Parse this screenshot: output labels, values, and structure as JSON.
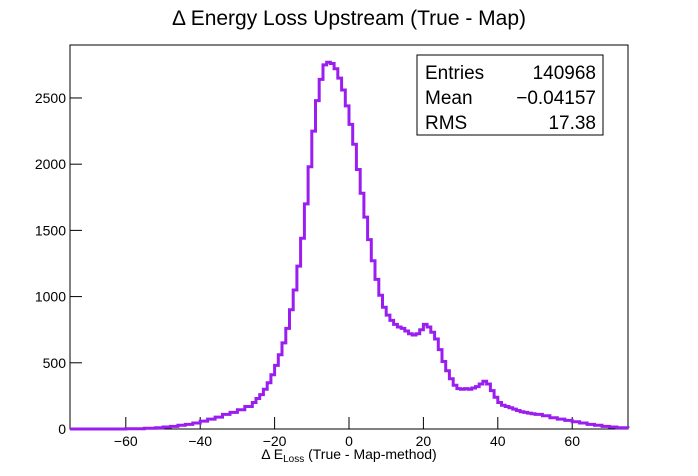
{
  "chart_data": {
    "type": "histogram",
    "title": "Δ Energy Loss Upstream (True - Map)",
    "xlabel_prefix": "Δ E",
    "xlabel_sub": "Loss",
    "xlabel_suffix": " (True - Map-method)",
    "ylabel": "",
    "xlim": [
      -75,
      75
    ],
    "ylim": [
      0,
      2900
    ],
    "x_ticks": [
      -60,
      -40,
      -20,
      0,
      20,
      40,
      60
    ],
    "y_ticks": [
      0,
      500,
      1000,
      1500,
      2000,
      2500
    ],
    "line_color": "#9a1ef0",
    "grid": false,
    "stats": {
      "entries_label": "Entries",
      "entries_value": "140968",
      "mean_label": "Mean",
      "mean_value": "−0.04157",
      "rms_label": "RMS",
      "rms_value": "17.38"
    },
    "points": [
      [
        -75,
        0
      ],
      [
        -70,
        0
      ],
      [
        -65,
        0
      ],
      [
        -60,
        2
      ],
      [
        -55,
        5
      ],
      [
        -52,
        10
      ],
      [
        -50,
        15
      ],
      [
        -48,
        20
      ],
      [
        -46,
        28
      ],
      [
        -44,
        35
      ],
      [
        -42,
        45
      ],
      [
        -40,
        60
      ],
      [
        -38,
        75
      ],
      [
        -36,
        90
      ],
      [
        -34,
        110
      ],
      [
        -32,
        125
      ],
      [
        -30,
        145
      ],
      [
        -28,
        170
      ],
      [
        -26,
        200
      ],
      [
        -25,
        230
      ],
      [
        -24,
        260
      ],
      [
        -23,
        300
      ],
      [
        -22,
        350
      ],
      [
        -21,
        410
      ],
      [
        -20,
        480
      ],
      [
        -19,
        560
      ],
      [
        -18,
        650
      ],
      [
        -17,
        760
      ],
      [
        -16,
        900
      ],
      [
        -15,
        1050
      ],
      [
        -14,
        1230
      ],
      [
        -13,
        1440
      ],
      [
        -12,
        1700
      ],
      [
        -11,
        1980
      ],
      [
        -10,
        2250
      ],
      [
        -9,
        2480
      ],
      [
        -8,
        2640
      ],
      [
        -7,
        2750
      ],
      [
        -6,
        2770
      ],
      [
        -5,
        2760
      ],
      [
        -4,
        2720
      ],
      [
        -3,
        2650
      ],
      [
        -2,
        2560
      ],
      [
        -1,
        2440
      ],
      [
        0,
        2300
      ],
      [
        1,
        2150
      ],
      [
        2,
        1960
      ],
      [
        3,
        1780
      ],
      [
        4,
        1600
      ],
      [
        5,
        1430
      ],
      [
        6,
        1270
      ],
      [
        7,
        1130
      ],
      [
        8,
        1010
      ],
      [
        9,
        920
      ],
      [
        10,
        860
      ],
      [
        11,
        820
      ],
      [
        12,
        790
      ],
      [
        13,
        770
      ],
      [
        14,
        760
      ],
      [
        15,
        740
      ],
      [
        16,
        720
      ],
      [
        17,
        710
      ],
      [
        18,
        720
      ],
      [
        19,
        750
      ],
      [
        20,
        790
      ],
      [
        21,
        770
      ],
      [
        22,
        730
      ],
      [
        23,
        680
      ],
      [
        24,
        600
      ],
      [
        25,
        510
      ],
      [
        26,
        440
      ],
      [
        27,
        380
      ],
      [
        28,
        330
      ],
      [
        29,
        305
      ],
      [
        30,
        300
      ],
      [
        31,
        305
      ],
      [
        32,
        300
      ],
      [
        33,
        310
      ],
      [
        34,
        320
      ],
      [
        35,
        340
      ],
      [
        36,
        360
      ],
      [
        37,
        340
      ],
      [
        38,
        290
      ],
      [
        39,
        240
      ],
      [
        40,
        200
      ],
      [
        41,
        180
      ],
      [
        42,
        170
      ],
      [
        43,
        160
      ],
      [
        44,
        150
      ],
      [
        45,
        140
      ],
      [
        46,
        130
      ],
      [
        47,
        125
      ],
      [
        48,
        120
      ],
      [
        49,
        115
      ],
      [
        50,
        110
      ],
      [
        52,
        100
      ],
      [
        54,
        85
      ],
      [
        56,
        75
      ],
      [
        58,
        65
      ],
      [
        60,
        55
      ],
      [
        62,
        45
      ],
      [
        64,
        35
      ],
      [
        66,
        28
      ],
      [
        68,
        20
      ],
      [
        70,
        15
      ],
      [
        72,
        10
      ],
      [
        75,
        8
      ]
    ]
  }
}
